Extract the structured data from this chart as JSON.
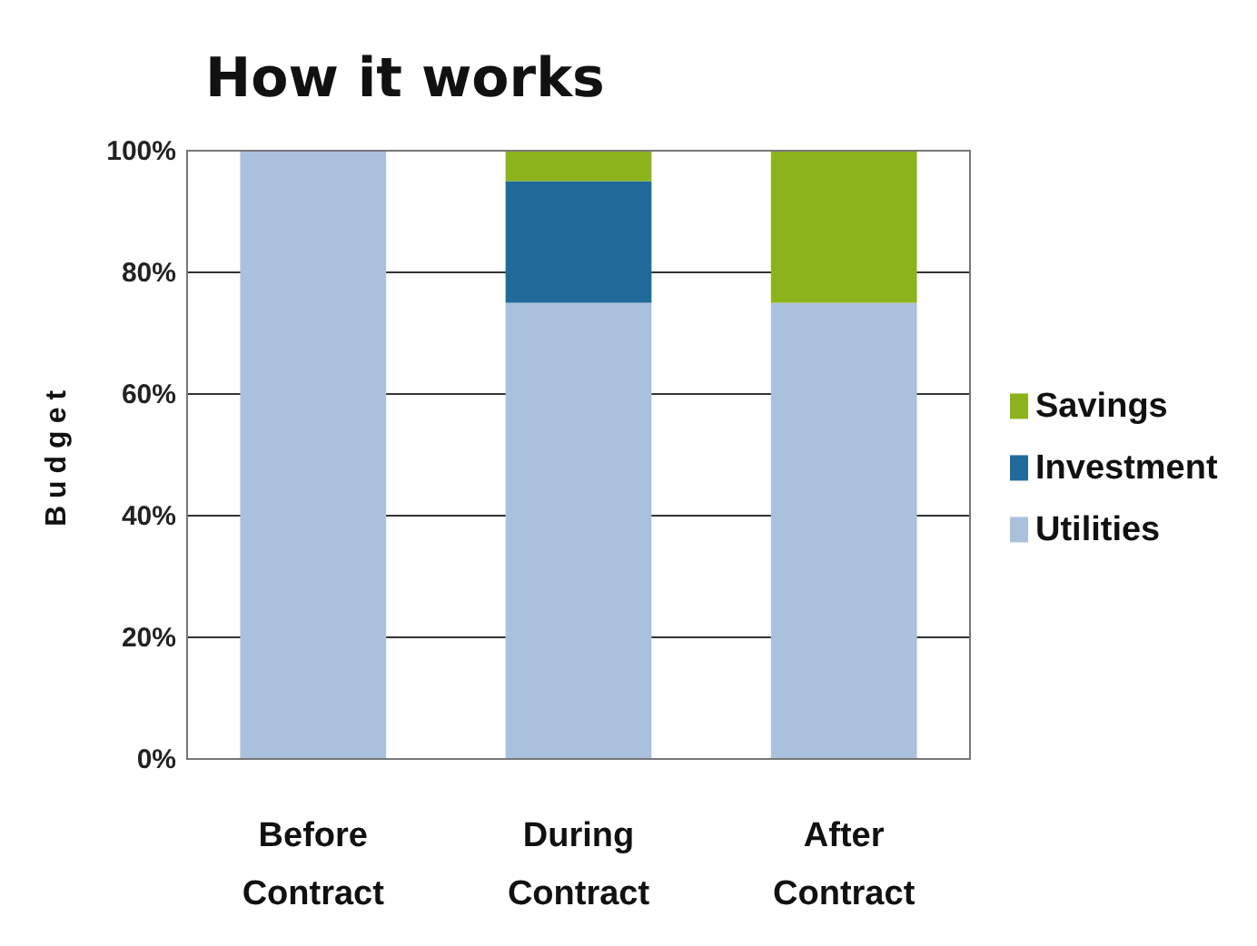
{
  "chart_data": {
    "type": "bar",
    "title": "How it works",
    "ylabel": "Budget",
    "categories": [
      "Before\nContract",
      "During\nContract",
      "After\nContract"
    ],
    "stacked": true,
    "series": [
      {
        "name": "Utilities",
        "color": "#a9c1dc",
        "values": [
          100,
          75,
          75
        ]
      },
      {
        "name": "Investment",
        "color": "#1f6a99",
        "values": [
          0,
          20,
          0
        ]
      },
      {
        "name": "Savings",
        "color": "#8db31c",
        "values": [
          0,
          5,
          25
        ]
      }
    ],
    "ylim": [
      0,
      100
    ],
    "yticks": [
      {
        "value": 0,
        "label": "0%"
      },
      {
        "value": 20,
        "label": "20%"
      },
      {
        "value": 40,
        "label": "40%"
      },
      {
        "value": 60,
        "label": "60%"
      },
      {
        "value": 80,
        "label": "80%"
      },
      {
        "value": 100,
        "label": "100%"
      }
    ],
    "grid": "y",
    "legend": "right"
  }
}
